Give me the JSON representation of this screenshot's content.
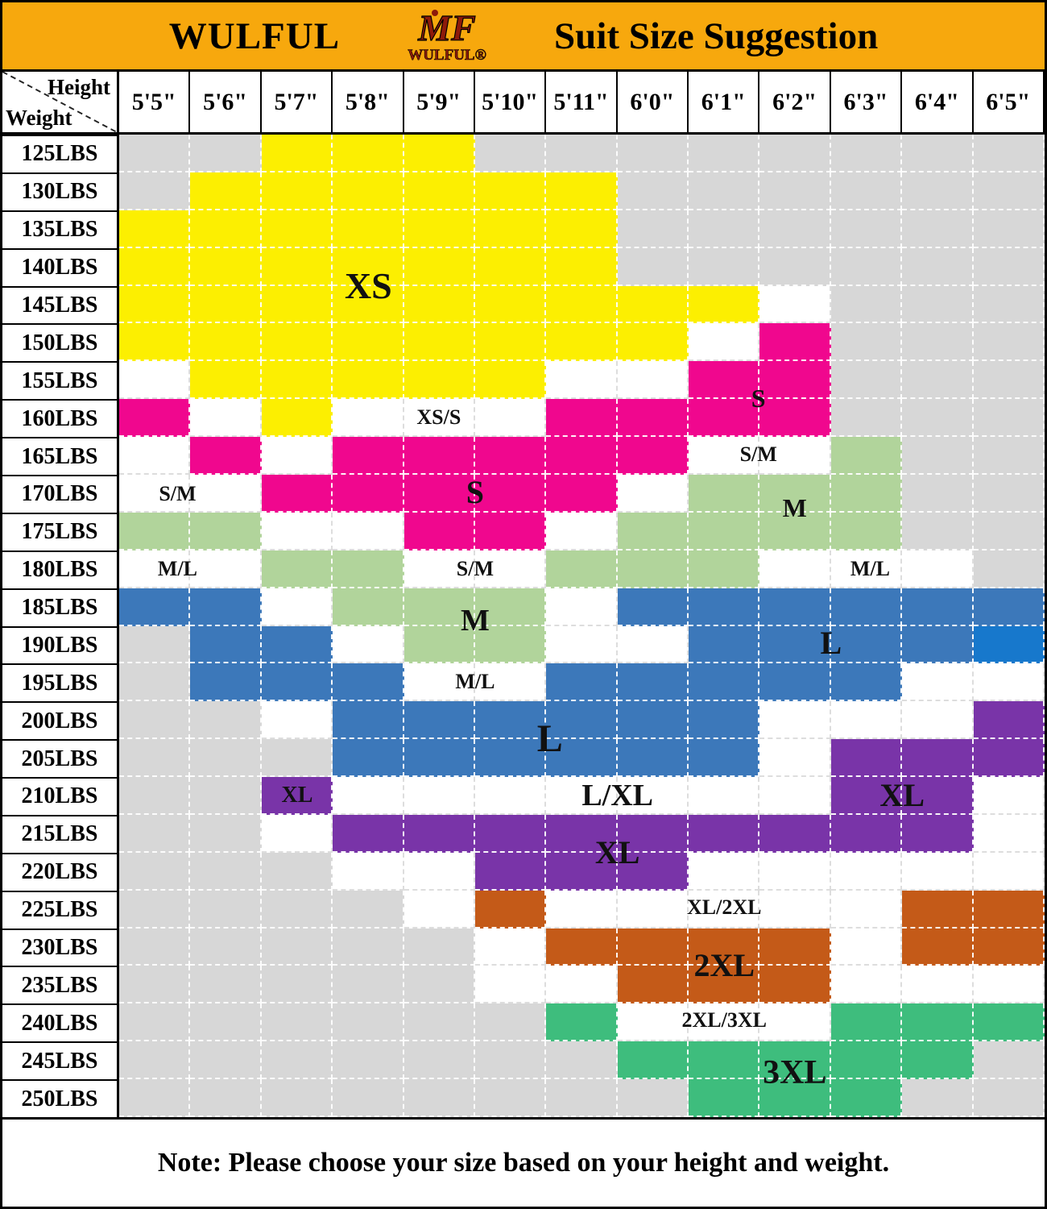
{
  "banner": {
    "brand": "WULFUL",
    "logo_mark": "MF",
    "logo_text": "WULFUL®",
    "logo_color": "#8d1a0a",
    "banner_bg": "#f7a80d",
    "title": "Suit Size Suggestion"
  },
  "header": {
    "corner_top": "Height",
    "corner_bottom": "Weight",
    "heights": [
      "5'5\"",
      "5'6\"",
      "5'7\"",
      "5'8\"",
      "5'9\"",
      "5'10\"",
      "5'11\"",
      "6'0\"",
      "6'1\"",
      "6'2\"",
      "6'3\"",
      "6'4\"",
      "6'5\""
    ]
  },
  "weights": [
    "125LBS",
    "130LBS",
    "135LBS",
    "140LBS",
    "145LBS",
    "150LBS",
    "155LBS",
    "160LBS",
    "165LBS",
    "170LBS",
    "175LBS",
    "180LBS",
    "185LBS",
    "190LBS",
    "195LBS",
    "200LBS",
    "205LBS",
    "210LBS",
    "215LBS",
    "220LBS",
    "225LBS",
    "230LBS",
    "235LBS",
    "240LBS",
    "245LBS",
    "250LBS"
  ],
  "chart_data": {
    "type": "heatmap",
    "title": "WULFUL Suit Size Suggestion",
    "x": [
      "5'5\"",
      "5'6\"",
      "5'7\"",
      "5'8\"",
      "5'9\"",
      "5'10\"",
      "5'11\"",
      "6'0\"",
      "6'1\"",
      "6'2\"",
      "6'3\"",
      "6'4\"",
      "6'5\""
    ],
    "y": [
      "125LBS",
      "130LBS",
      "135LBS",
      "140LBS",
      "145LBS",
      "150LBS",
      "155LBS",
      "160LBS",
      "165LBS",
      "170LBS",
      "175LBS",
      "180LBS",
      "185LBS",
      "190LBS",
      "195LBS",
      "200LBS",
      "205LBS",
      "210LBS",
      "215LBS",
      "220LBS",
      "225LBS",
      "230LBS",
      "235LBS",
      "240LBS",
      "245LBS",
      "250LBS"
    ],
    "code_legend": {
      "G": "not-available",
      "W": "between-sizes",
      "Y": "XS",
      "P": "S",
      "M": "M",
      "B": "L",
      "C": "L",
      "V": "XL",
      "O": "2XL",
      "E": "3XL"
    },
    "rows": [
      "GGYYYGGGGGGGG",
      "GYYYYYYGGGGGG",
      "YYYYYYYGGGGGG",
      "YYYYYYYGGGGGG",
      "YYYYYYYYYWGGG",
      "YYYYYYYYWPGGG",
      "WYYYYYWWPPGGG",
      "PWYWWWPPPPGGG",
      "WPWPPPPPWWMGG",
      "WWPPPPPWMMMGG",
      "MMWWPPWMMMMGG",
      "WWMMWWMMMWWWG",
      "BBWMMMWBBBBBB",
      "GBBWMMWWBBBBC",
      "GBBBWWBBBBBWW",
      "GGWBBBBBBWWWV",
      "GGGBBBBBBWVVV",
      "GGVWWWWWWWVVW",
      "GGWVVVVVVVVVW",
      "GGGWWVVVWWWWW",
      "GGGGWOWWWWWOO",
      "GGGGGWOOOOWOO",
      "GGGGGWWOOOWWW",
      "GGGGGGEWWWEEE",
      "GGGGGGGEEEEEG",
      "GGGGGGGGEEEGG"
    ],
    "palette": {
      "G": "#d7d7d7",
      "W": "#ffffff",
      "Y": "#fcef01",
      "P": "#f0078e",
      "M": "#b1d49b",
      "B": "#3c78ba",
      "C": "#1778cc",
      "V": "#7934a8",
      "O": "#c45a18",
      "E": "#3ebd7d"
    },
    "size_labels": [
      {
        "text": "XS",
        "col": 3.5,
        "row": 4.0,
        "size": 46
      },
      {
        "text": "XS/S",
        "col": 4.49,
        "row": 7.49,
        "size": 26
      },
      {
        "text": "S",
        "col": 5.0,
        "row": 9.47,
        "size": 40
      },
      {
        "text": "S/M",
        "col": 0.82,
        "row": 9.51,
        "size": 26
      },
      {
        "text": "S",
        "col": 8.98,
        "row": 6.98,
        "size": 32
      },
      {
        "text": "S/M",
        "col": 8.98,
        "row": 8.47,
        "size": 26
      },
      {
        "text": "M",
        "col": 9.49,
        "row": 9.87,
        "size": 32
      },
      {
        "text": "M/L",
        "col": 0.82,
        "row": 11.49,
        "size": 26
      },
      {
        "text": "S/M",
        "col": 5.0,
        "row": 11.49,
        "size": 26
      },
      {
        "text": "M/L",
        "col": 10.55,
        "row": 11.49,
        "size": 26
      },
      {
        "text": "M",
        "col": 5.0,
        "row": 12.87,
        "size": 38
      },
      {
        "text": "M/L",
        "col": 5.0,
        "row": 14.49,
        "size": 26
      },
      {
        "text": "L",
        "col": 10.0,
        "row": 13.45,
        "size": 40
      },
      {
        "text": "L",
        "col": 6.05,
        "row": 16.0,
        "size": 48
      },
      {
        "text": "XL",
        "col": 2.5,
        "row": 17.49,
        "size": 28
      },
      {
        "text": "L/XL",
        "col": 7.0,
        "row": 17.49,
        "size": 38
      },
      {
        "text": "XL",
        "col": 11.0,
        "row": 17.5,
        "size": 40
      },
      {
        "text": "XL",
        "col": 7.0,
        "row": 19.0,
        "size": 40
      },
      {
        "text": "XL/2XL",
        "col": 8.5,
        "row": 20.45,
        "size": 26
      },
      {
        "text": "2XL",
        "col": 8.5,
        "row": 22.0,
        "size": 40
      },
      {
        "text": "2XL/3XL",
        "col": 8.5,
        "row": 23.45,
        "size": 26
      },
      {
        "text": "3XL",
        "col": 9.49,
        "row": 24.83,
        "size": 42
      }
    ]
  },
  "note": "Note: Please choose your size based on your height and weight."
}
